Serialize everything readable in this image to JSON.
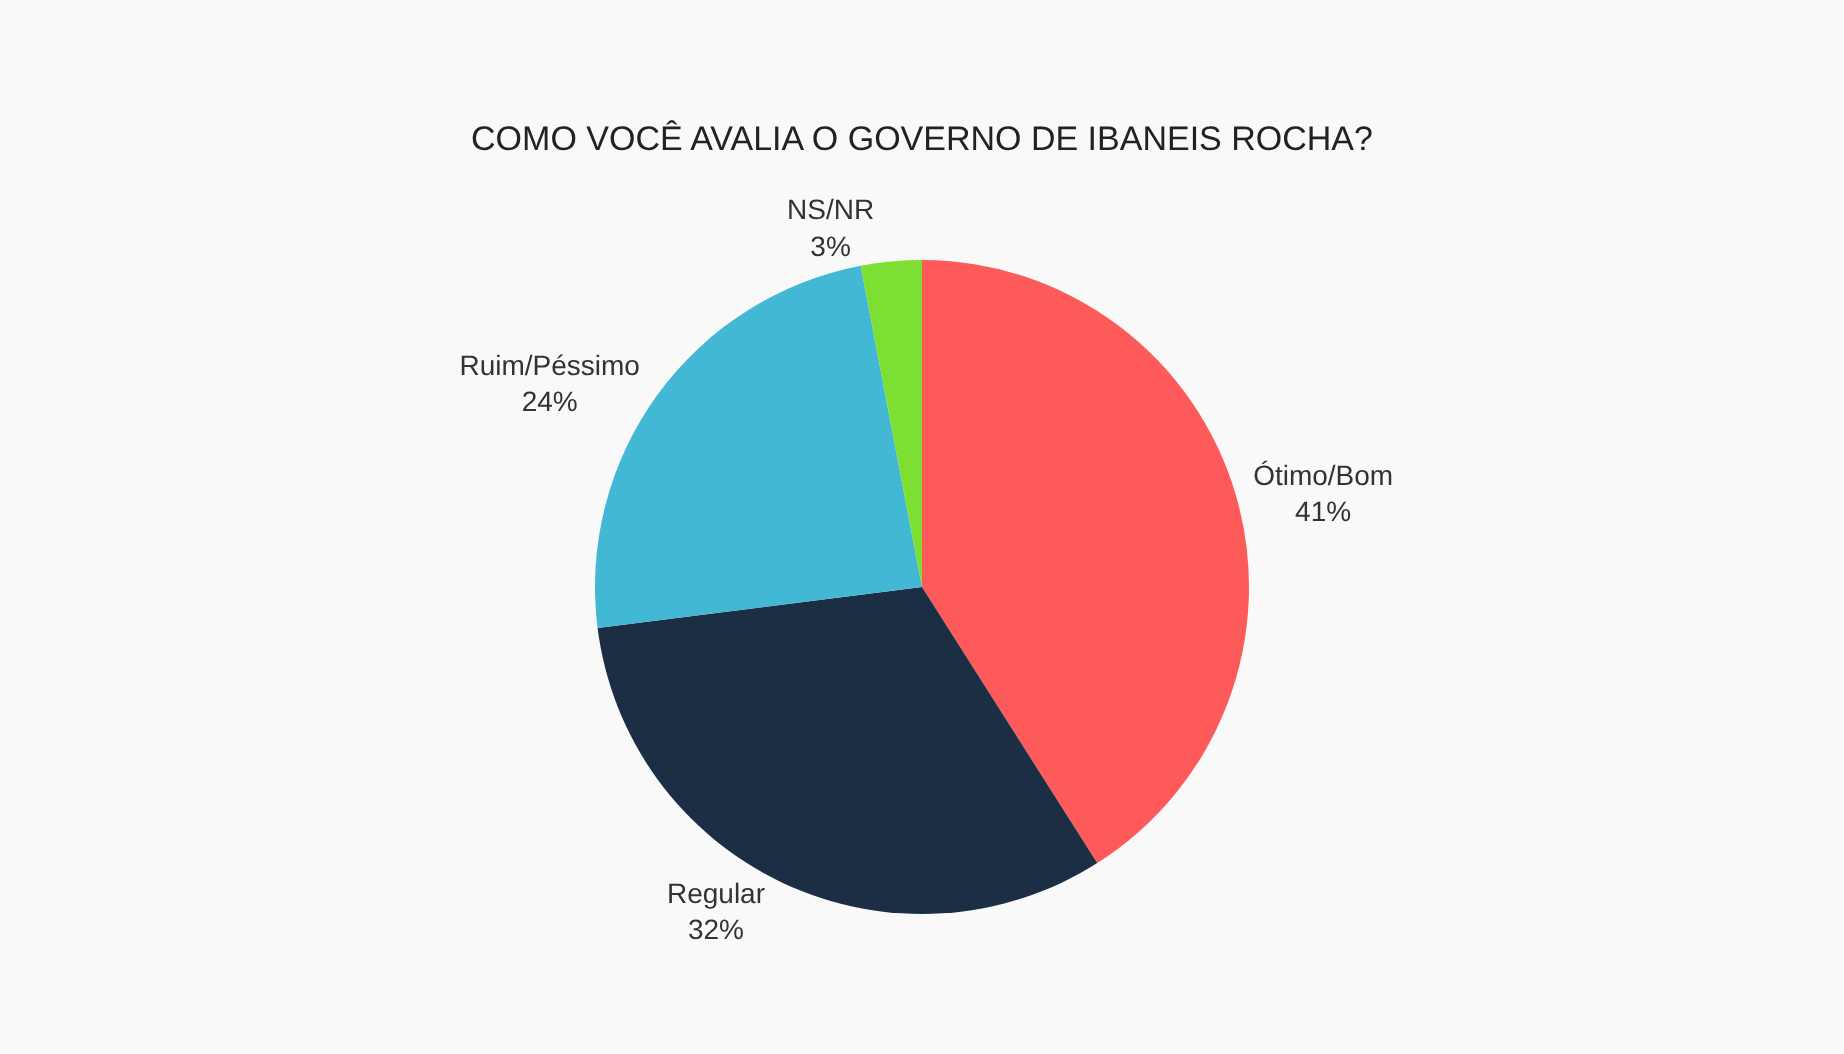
{
  "chart_data": {
    "type": "pie",
    "title": "COMO VOCÊ AVALIA O GOVERNO DE IBANEIS ROCHA?",
    "categories": [
      "Ótimo/Bom",
      "Regular",
      "Ruim/Péssimo",
      "NS/NR"
    ],
    "values": [
      41,
      32,
      24,
      3
    ],
    "value_labels": [
      "41%",
      "32%",
      "24%",
      "3%"
    ],
    "colors": [
      "#ff5a5a",
      "#1b2e44",
      "#42b8d5",
      "#7ddf32"
    ],
    "legend": false
  }
}
